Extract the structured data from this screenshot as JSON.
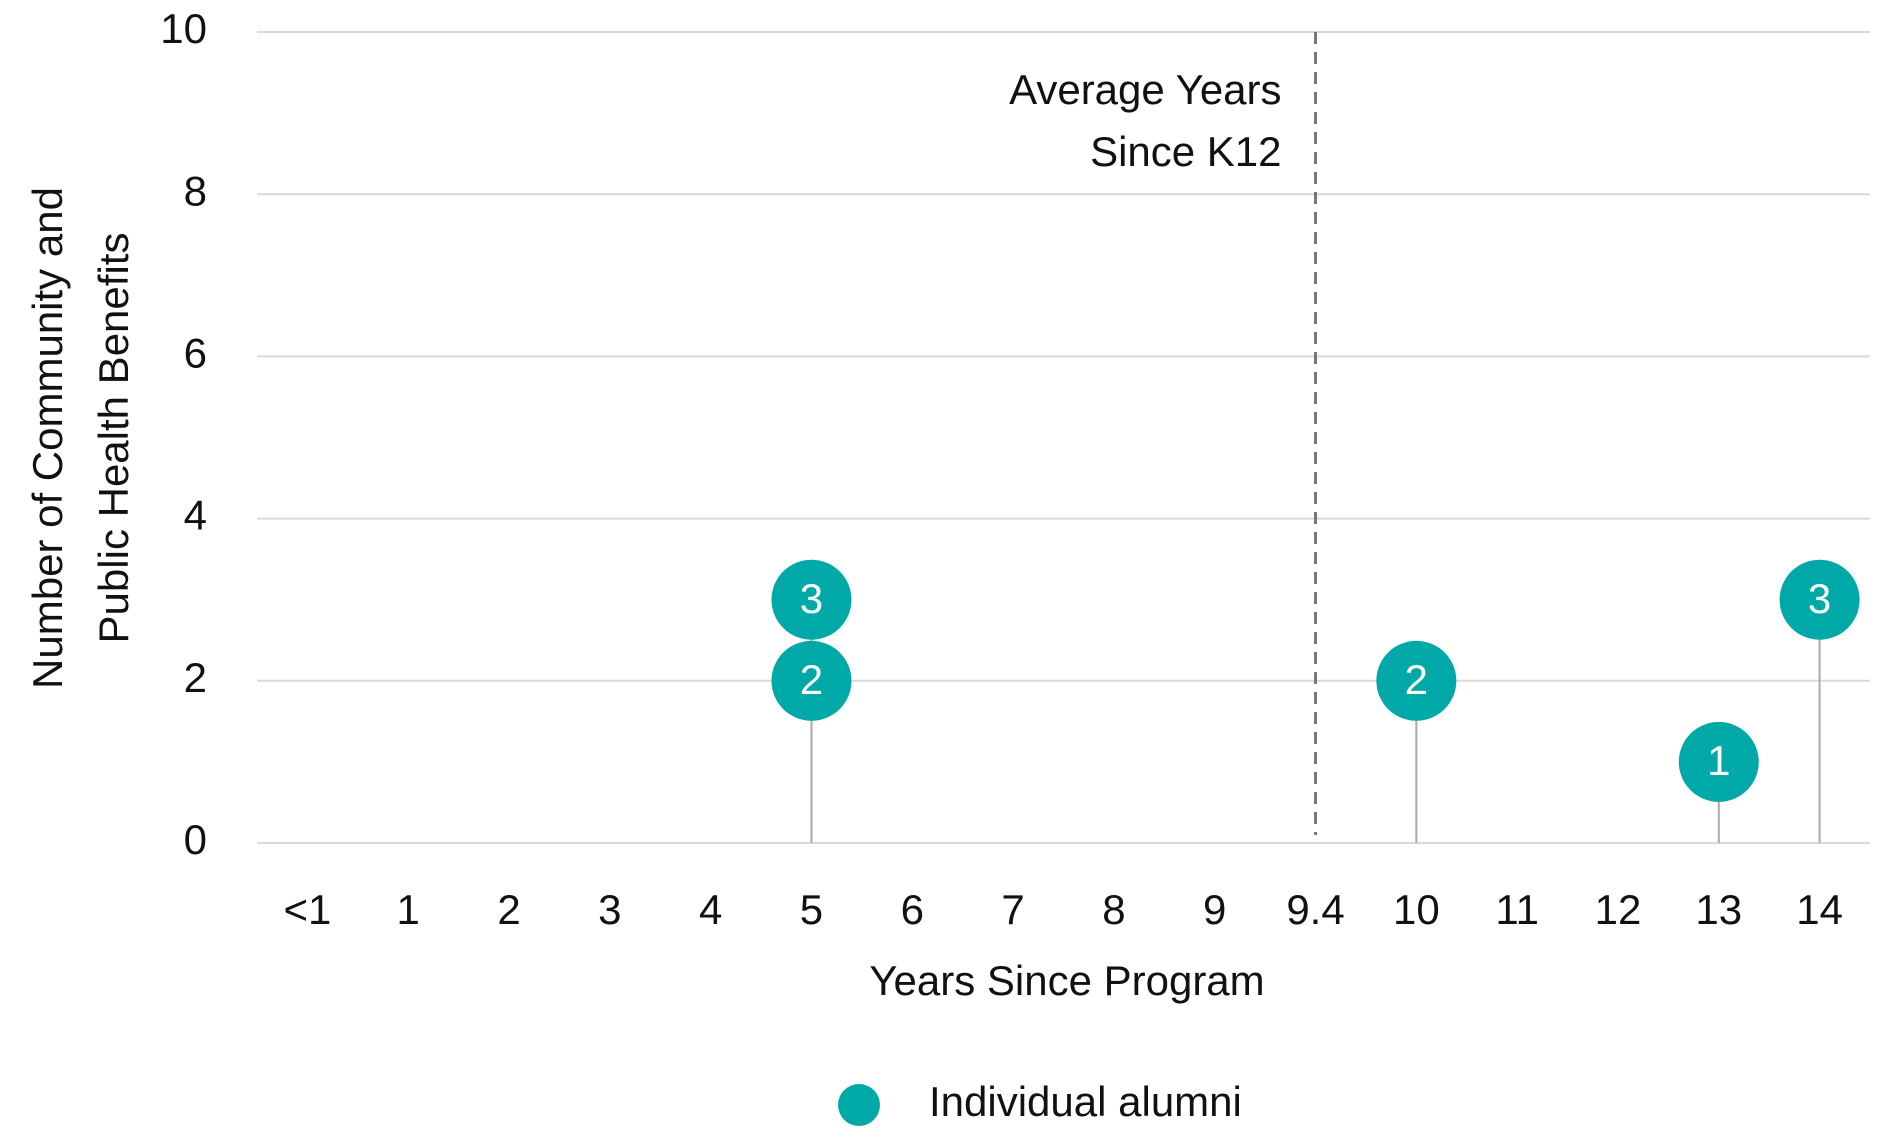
{
  "chart_data": {
    "type": "dot",
    "categories": [
      "<1",
      "1",
      "2",
      "3",
      "4",
      "5",
      "6",
      "7",
      "8",
      "9",
      "9.4",
      "10",
      "11",
      "12",
      "13",
      "14"
    ],
    "series": [
      {
        "name": "Individual alumni",
        "color": "#00a8a8",
        "x": [
          "5",
          "5",
          "10",
          "13",
          "14"
        ],
        "values": [
          3,
          2,
          2,
          1,
          3
        ]
      }
    ],
    "reference_line": {
      "x": "9.4",
      "label": [
        "Average Years",
        "Since K12"
      ]
    },
    "xlabel": "Years Since Program",
    "ylabel": [
      "Number of Community and",
      "Public Health Benefits"
    ],
    "ylim": [
      0,
      10
    ],
    "yticks": [
      0,
      2,
      4,
      6,
      8,
      10
    ],
    "grid": true,
    "legend": "bottom"
  }
}
